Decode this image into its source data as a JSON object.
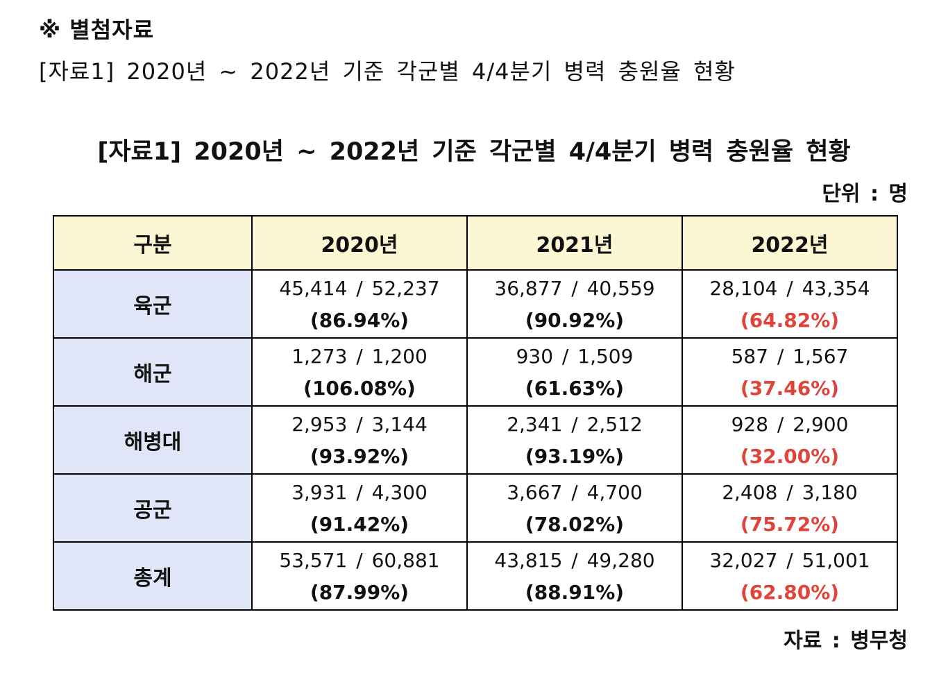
{
  "header": {
    "attachment_title": "※ 별첨자료",
    "attachment_subtitle": "[자료1] 2020년 ~ 2022년 기준 각군별 4/4분기 병력 충원율 현황"
  },
  "table_title": "[자료1]  2020년 ~ 2022년 기준 각군별 4/4분기 병력 충원율 현황",
  "unit": "단위 : 명",
  "source": "자료 : 병무청",
  "colors": {
    "header_bg": "#fdf6d3",
    "branch_bg": "#e0e6f7",
    "highlight_rate": "#e0433a"
  },
  "table": {
    "headers": [
      "구분",
      "2020년",
      "2021년",
      "2022년"
    ],
    "rows": [
      {
        "branch": "육군",
        "cells": [
          {
            "count": "45,414 / 52,237",
            "rate": "(86.94%)"
          },
          {
            "count": "36,877 / 40,559",
            "rate": "(90.92%)"
          },
          {
            "count": "28,104 / 43,354",
            "rate": "(64.82%)"
          }
        ]
      },
      {
        "branch": "해군",
        "cells": [
          {
            "count": "1,273 / 1,200",
            "rate": "(106.08%)"
          },
          {
            "count": "930 / 1,509",
            "rate": "(61.63%)"
          },
          {
            "count": "587 / 1,567",
            "rate": "(37.46%)"
          }
        ]
      },
      {
        "branch": "해병대",
        "cells": [
          {
            "count": "2,953 / 3,144",
            "rate": "(93.92%)"
          },
          {
            "count": "2,341 / 2,512",
            "rate": "(93.19%)"
          },
          {
            "count": "928 / 2,900",
            "rate": "(32.00%)"
          }
        ]
      },
      {
        "branch": "공군",
        "cells": [
          {
            "count": "3,931 / 4,300",
            "rate": "(91.42%)"
          },
          {
            "count": "3,667 / 4,700",
            "rate": "(78.02%)"
          },
          {
            "count": "2,408 / 3,180",
            "rate": "(75.72%)"
          }
        ]
      },
      {
        "branch": "총계",
        "cells": [
          {
            "count": "53,571 / 60,881",
            "rate": "(87.99%)"
          },
          {
            "count": "43,815 / 49,280",
            "rate": "(88.91%)"
          },
          {
            "count": "32,027 / 51,001",
            "rate": "(62.80%)"
          }
        ]
      }
    ]
  }
}
